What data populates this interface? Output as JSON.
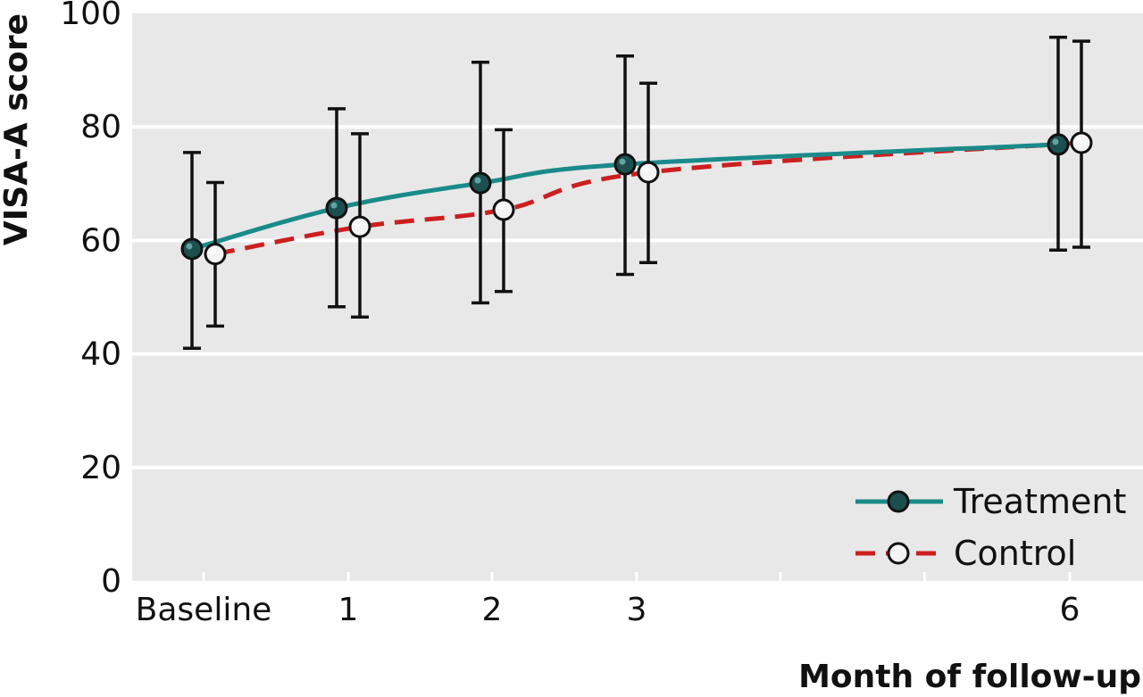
{
  "chart_data": {
    "type": "line",
    "title": "",
    "xlabel": "Month of follow-up",
    "ylabel": "VISA-A score",
    "x_ticks": [
      {
        "label": "Baseline",
        "value": 0
      },
      {
        "label": "1",
        "value": 1
      },
      {
        "label": "2",
        "value": 2
      },
      {
        "label": "3",
        "value": 3
      },
      {
        "label": "6",
        "value": 6
      }
    ],
    "xlim": [
      -0.5,
      6.5
    ],
    "ylim": [
      0,
      100
    ],
    "y_ticks": [
      0,
      20,
      40,
      60,
      80,
      100
    ],
    "grid": true,
    "legend_position": "bottom-right",
    "series": [
      {
        "name": "Treatment",
        "color": "#1a8a8a",
        "marker_fill": "#1d4f4f",
        "line_style": "solid",
        "x": [
          0,
          1,
          2,
          3,
          6
        ],
        "y": [
          58.5,
          65.7,
          70.1,
          73.4,
          76.9
        ],
        "error_low": [
          41.0,
          48.3,
          49.0,
          54.0,
          58.3
        ],
        "error_high": [
          75.5,
          83.2,
          91.4,
          92.5,
          95.8
        ]
      },
      {
        "name": "Control",
        "color": "#cc1f1f",
        "marker_fill": "#f4f4f4",
        "line_style": "dashed",
        "x": [
          0,
          1,
          2,
          3,
          6
        ],
        "y": [
          57.6,
          62.4,
          65.4,
          72.0,
          77.2
        ],
        "error_low": [
          44.9,
          46.5,
          51.0,
          56.1,
          58.8
        ],
        "error_high": [
          70.2,
          78.8,
          79.5,
          87.7,
          95.1
        ]
      }
    ]
  }
}
